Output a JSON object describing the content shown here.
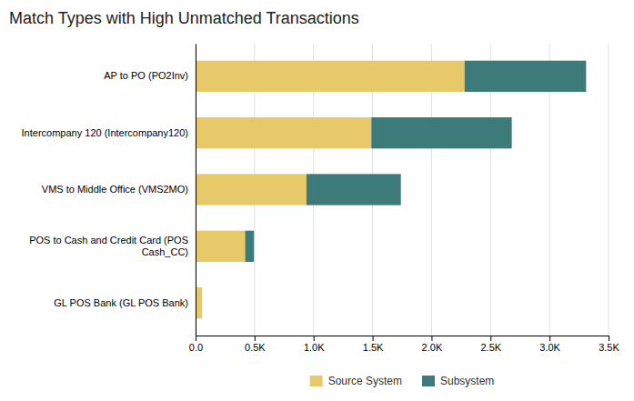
{
  "chart_data": {
    "type": "bar",
    "orientation": "horizontal",
    "stacked": true,
    "title": "Match Types with High Unmatched Transactions",
    "categories": [
      "GL POS Bank (GL POS Bank)",
      "POS to Cash and Credit Card (POS\nCash_CC)",
      "VMS to Middle Office (VMS2MO)",
      "Intercompany 120 (Intercompany120)",
      "AP to PO (PO2Inv)"
    ],
    "series": [
      {
        "name": "Source System",
        "color": "#E8C96A",
        "values": [
          55,
          420,
          940,
          1490,
          2280
        ]
      },
      {
        "name": "Subsystem",
        "color": "#3D7A7A",
        "values": [
          0,
          75,
          800,
          1190,
          1030
        ]
      }
    ],
    "xlim": [
      0,
      3500
    ],
    "xticks": [
      {
        "value": 0,
        "label": "0.0"
      },
      {
        "value": 500,
        "label": "0.5K"
      },
      {
        "value": 1000,
        "label": "1.0K"
      },
      {
        "value": 1500,
        "label": "1.5K"
      },
      {
        "value": 2000,
        "label": "2.0K"
      },
      {
        "value": 2500,
        "label": "2.5K"
      },
      {
        "value": 3000,
        "label": "3.0K"
      },
      {
        "value": 3500,
        "label": "3.5K"
      }
    ],
    "grid": true,
    "legend": "bottom"
  }
}
